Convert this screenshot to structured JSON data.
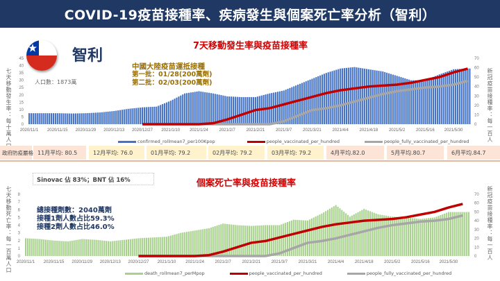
{
  "title": "COVID-19疫苗接種率、疾病發生與個案死亡率分析（智利）",
  "country": "智利",
  "population": "人口數：1873萬",
  "colors": {
    "title_bg": "#1f3864",
    "confirmed": "#4472c4",
    "deaths": "#a9d18e",
    "vaccinated": "#c00000",
    "fully": "#a6a6a6"
  },
  "annotation1": {
    "line1": "中國大陸疫苗運抵接種",
    "line2": "第一批：01/28(200萬劑)",
    "line3": "第二批：02/03(200萬劑)"
  },
  "annotation2": {
    "line1": "總接種劑數：2040萬劑",
    "line2": "接種1劑人數占比59.3%",
    "line3": "接種2劑人數占比46.0%"
  },
  "sinovac_note": "Sinovac 佔 83%；BNT 佔 16%",
  "stringency": {
    "label": "政府防疫嚴格指數",
    "cells": [
      "11月平均: 80.5",
      "12月平均: 76.0",
      "01月平均: 79.2",
      "02月平均: 79.2",
      "03月平均: 79.2",
      "4月平均.82.0",
      "5月平均.80.7",
      "6月平均.84.7"
    ]
  },
  "chart_data": [
    {
      "type": "bar+line",
      "title": "7天移動發生率與疫苗接種率",
      "ylabel_left": "七天移動發生率：每十萬人口",
      "ylabel_right": "新冠疫苗接種率：每一百人",
      "ylim_left": [
        0,
        45
      ],
      "yticks_left": [
        0,
        5,
        10,
        15,
        20,
        25,
        30,
        35,
        40,
        45
      ],
      "ylim_right": [
        0,
        70
      ],
      "yticks_right": [
        0,
        10,
        20,
        30,
        40,
        50,
        60,
        70
      ],
      "x_tick_labels": [
        "2020/11/1",
        "2020/11/15",
        "2020/11/29",
        "2020/12/13",
        "2020/12/27",
        "2021/1/10",
        "2021/1/24",
        "2021/2/7",
        "2021/2/21",
        "2021/3/7",
        "2021/3/21",
        "2021/4/4",
        "2021/4/18",
        "2021/5/2",
        "2021/5/16",
        "2021/5/30"
      ],
      "x": [
        "2020/11/1",
        "2020/11/8",
        "2020/11/15",
        "2020/11/22",
        "2020/11/29",
        "2020/12/6",
        "2020/12/13",
        "2020/12/20",
        "2020/12/27",
        "2021/1/3",
        "2021/1/10",
        "2021/1/17",
        "2021/1/24",
        "2021/1/31",
        "2021/2/7",
        "2021/2/14",
        "2021/2/21",
        "2021/2/28",
        "2021/3/7",
        "2021/3/14",
        "2021/3/21",
        "2021/3/28",
        "2021/4/4",
        "2021/4/11",
        "2021/4/18",
        "2021/4/25",
        "2021/5/2",
        "2021/5/9",
        "2021/5/16",
        "2021/5/23",
        "2021/5/30",
        "2021/6/6"
      ],
      "series": [
        {
          "name": "confirmed_rollmean7_per100Kpop",
          "axis": "left",
          "type": "bar",
          "values": [
            7.5,
            7.5,
            7.5,
            7.3,
            7.5,
            8,
            9,
            10.5,
            11.5,
            12,
            16,
            21,
            22.5,
            21,
            19,
            18.5,
            18.5,
            21,
            23,
            27,
            31,
            35,
            38,
            39,
            37.5,
            36,
            33,
            30,
            30,
            34,
            37.5,
            38
          ]
        },
        {
          "name": "people_vaccinated_per_hundred",
          "axis": "right",
          "type": "line",
          "values": [
            null,
            null,
            null,
            null,
            null,
            null,
            null,
            null,
            0,
            0,
            0,
            0,
            0,
            1,
            5,
            10,
            15,
            17,
            21,
            25,
            29,
            33,
            36,
            38,
            40,
            41,
            42,
            44,
            47,
            50,
            55,
            59
          ]
        },
        {
          "name": "people_fully_vaccinated_per_hundred",
          "axis": "right",
          "type": "line",
          "values": [
            null,
            null,
            null,
            null,
            null,
            null,
            null,
            null,
            0,
            0,
            0,
            0,
            0,
            0,
            0,
            0,
            0,
            0,
            3,
            9,
            15,
            17,
            20,
            24,
            28,
            32,
            35,
            37,
            39,
            40,
            42,
            46
          ]
        }
      ]
    },
    {
      "type": "bar+line",
      "title": "個案死亡率與疫苗接種率",
      "ylabel_left": "七天移動死亡率：每一百萬人口",
      "ylabel_right": "新冠疫苗接種率：每一百人",
      "ylim_left": [
        0,
        8
      ],
      "yticks_left": [
        0,
        1,
        2,
        3,
        4,
        5,
        6,
        7,
        8
      ],
      "ylim_right": [
        0,
        70
      ],
      "yticks_right": [
        0,
        10,
        20,
        30,
        40,
        50,
        60,
        70
      ],
      "x_tick_labels": [
        "2020/11/1",
        "2020/11/15",
        "2020/11/29",
        "2020/12/13",
        "2020/12/27",
        "2021/1/10",
        "2021/1/24",
        "2021/2/7",
        "2021/2/21",
        "2021/3/7",
        "2021/3/21",
        "2021/4/4",
        "2021/4/18",
        "2021/5/2",
        "2021/5/16",
        "2021/5/30"
      ],
      "series": [
        {
          "name": "death_rollmean7_perMpop",
          "axis": "left",
          "type": "bar",
          "values": [
            2.3,
            2.2,
            2.0,
            1.9,
            2.2,
            2.1,
            1.9,
            2.1,
            2.3,
            2.4,
            2.5,
            3.0,
            3.3,
            3.6,
            4.2,
            4.0,
            3.9,
            4.0,
            4.0,
            4.7,
            4.6,
            5.5,
            6.6,
            5.1,
            6.1,
            5.4,
            5.1,
            5.0,
            4.8,
            5.0,
            5.7,
            5.7
          ]
        },
        {
          "name": "people_vaccinated_per_hundred",
          "axis": "right",
          "type": "line",
          "ref": "chart_data.0.series.1"
        },
        {
          "name": "people_fully_vaccinated_per_hundred",
          "axis": "right",
          "type": "line",
          "ref": "chart_data.0.series.2"
        }
      ]
    }
  ]
}
